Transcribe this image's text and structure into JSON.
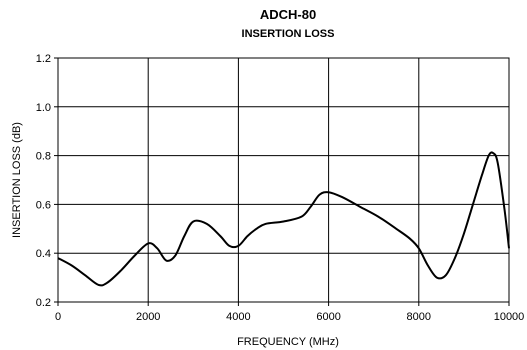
{
  "chart_data": {
    "type": "line",
    "title": "ADCH-80",
    "subtitle": "INSERTION LOSS",
    "xlabel": "FREQUENCY (MHz)",
    "ylabel": "INSERTION LOSS (dB)",
    "xlim": [
      0,
      10000
    ],
    "ylim": [
      0.2,
      1.2
    ],
    "xticks": [
      0,
      2000,
      4000,
      6000,
      8000,
      10000
    ],
    "yticks": [
      0.2,
      0.4,
      0.6,
      0.8,
      1.0,
      1.2
    ],
    "ytick_labels": [
      "0.2",
      "0.4",
      "0.6",
      "0.8",
      "1.0",
      "1.2"
    ],
    "grid": true,
    "legend": "none",
    "line_color": "#000000",
    "series": [
      {
        "x": [
          0,
          300,
          600,
          900,
          1100,
          1400,
          1700,
          2000,
          2200,
          2400,
          2600,
          2800,
          3000,
          3300,
          3600,
          3800,
          4000,
          4200,
          4400,
          4600,
          5000,
          5400,
          5600,
          5800,
          6000,
          6300,
          6700,
          7100,
          7500,
          7800,
          8000,
          8200,
          8400,
          8600,
          8800,
          9000,
          9200,
          9400,
          9550,
          9650,
          9750,
          9900,
          10000
        ],
        "y": [
          0.38,
          0.35,
          0.31,
          0.27,
          0.28,
          0.33,
          0.39,
          0.44,
          0.42,
          0.37,
          0.39,
          0.47,
          0.53,
          0.52,
          0.47,
          0.43,
          0.43,
          0.47,
          0.5,
          0.52,
          0.53,
          0.55,
          0.59,
          0.64,
          0.65,
          0.63,
          0.59,
          0.55,
          0.5,
          0.46,
          0.42,
          0.35,
          0.3,
          0.31,
          0.38,
          0.48,
          0.6,
          0.72,
          0.8,
          0.81,
          0.77,
          0.58,
          0.42
        ]
      }
    ]
  }
}
